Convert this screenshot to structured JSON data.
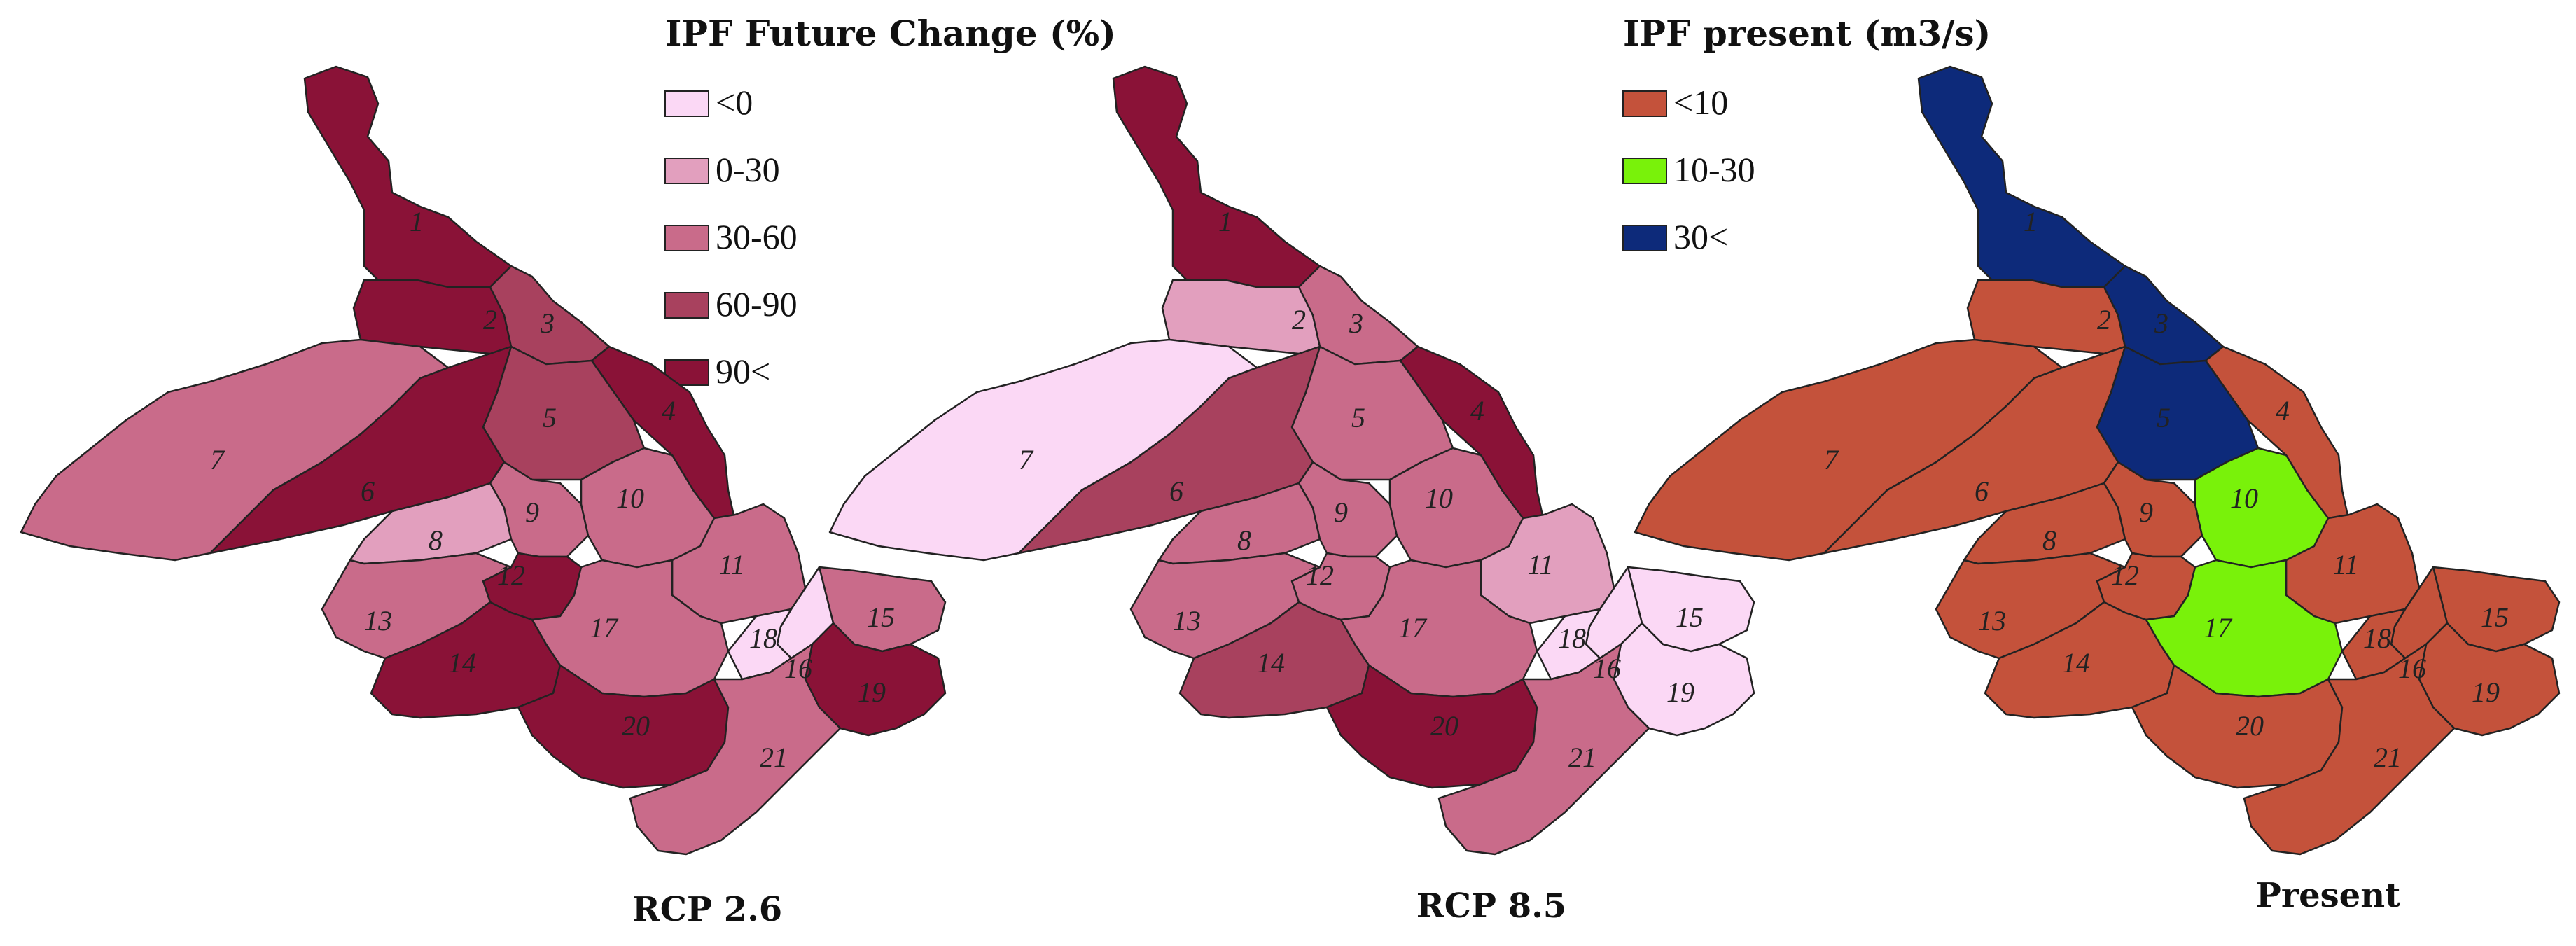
{
  "legend_change": {
    "title": "IPF Future Change (%)",
    "classes": [
      {
        "label": "<0",
        "color": "#fbd8f5"
      },
      {
        "label": "0-30",
        "color": "#e29fbe"
      },
      {
        "label": "30-60",
        "color": "#c96b8a"
      },
      {
        "label": "60-90",
        "color": "#a8415e"
      },
      {
        "label": "90<",
        "color": "#8a1237"
      }
    ]
  },
  "legend_present": {
    "title": "IPF present (m3/s)",
    "classes": [
      {
        "label": "<10",
        "color": "#c4523b"
      },
      {
        "label": "10-30",
        "color": "#79f20a"
      },
      {
        "label": "30<",
        "color": "#0d2a7a"
      }
    ]
  },
  "maps": [
    {
      "caption": "RCP 2.6",
      "legend": "change",
      "subbasin_class": {
        "1": 4,
        "2": 4,
        "3": 3,
        "4": 4,
        "5": 3,
        "6": 4,
        "7": 2,
        "8": 1,
        "9": 2,
        "10": 2,
        "11": 2,
        "12": 4,
        "13": 2,
        "14": 4,
        "15": 2,
        "16": 0,
        "17": 2,
        "18": 0,
        "19": 4,
        "20": 4,
        "21": 2
      }
    },
    {
      "caption": "RCP 8.5",
      "legend": "change",
      "subbasin_class": {
        "1": 4,
        "2": 1,
        "3": 2,
        "4": 4,
        "5": 2,
        "6": 3,
        "7": 0,
        "8": 2,
        "9": 2,
        "10": 2,
        "11": 1,
        "12": 2,
        "13": 2,
        "14": 3,
        "15": 0,
        "16": 0,
        "17": 2,
        "18": 0,
        "19": 0,
        "20": 4,
        "21": 2
      }
    },
    {
      "caption": "Present",
      "legend": "present",
      "subbasin_class": {
        "1": 2,
        "2": 0,
        "3": 2,
        "4": 0,
        "5": 2,
        "6": 0,
        "7": 0,
        "8": 0,
        "9": 0,
        "10": 1,
        "11": 0,
        "12": 0,
        "13": 0,
        "14": 0,
        "15": 0,
        "16": 0,
        "17": 1,
        "18": 0,
        "19": 0,
        "20": 0,
        "21": 0
      }
    }
  ],
  "subbasin_labels": [
    "1",
    "2",
    "3",
    "4",
    "5",
    "6",
    "7",
    "8",
    "9",
    "10",
    "11",
    "12",
    "13",
    "14",
    "15",
    "16",
    "17",
    "18",
    "19",
    "20",
    "21"
  ]
}
